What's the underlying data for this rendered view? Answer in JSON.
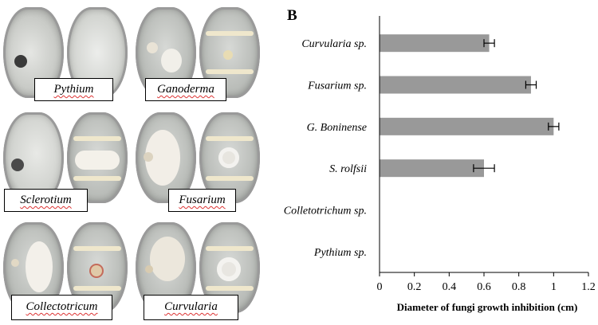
{
  "panel_a": {
    "letter": "A",
    "tiles": [
      {
        "label": "Pythium"
      },
      {
        "label": "Ganoderma"
      },
      {
        "label": "Sclerotium"
      },
      {
        "label": "Fusarium"
      },
      {
        "label": "Collectotricum"
      },
      {
        "label": "Curvularia"
      }
    ]
  },
  "panel_b": {
    "letter": "B"
  },
  "chart_data": {
    "type": "bar",
    "orientation": "horizontal",
    "categories": [
      "Curvularia sp.",
      "Fusarium sp.",
      "G. Boninense",
      "S. rolfsii",
      "Colletotrichum sp.",
      "Pythium sp."
    ],
    "values": [
      0.63,
      0.87,
      1.0,
      0.6,
      0,
      0
    ],
    "errors": [
      0.03,
      0.03,
      0.03,
      0.06,
      0,
      0
    ],
    "xlabel": "Diameter of fungi growth inhibition (cm)",
    "xlim": [
      0,
      1.2
    ],
    "xticks": [
      "0",
      "0.2",
      "0.4",
      "0.6",
      "0.8",
      "1",
      "1.2"
    ],
    "grid": false,
    "bar_color": "#999999"
  }
}
